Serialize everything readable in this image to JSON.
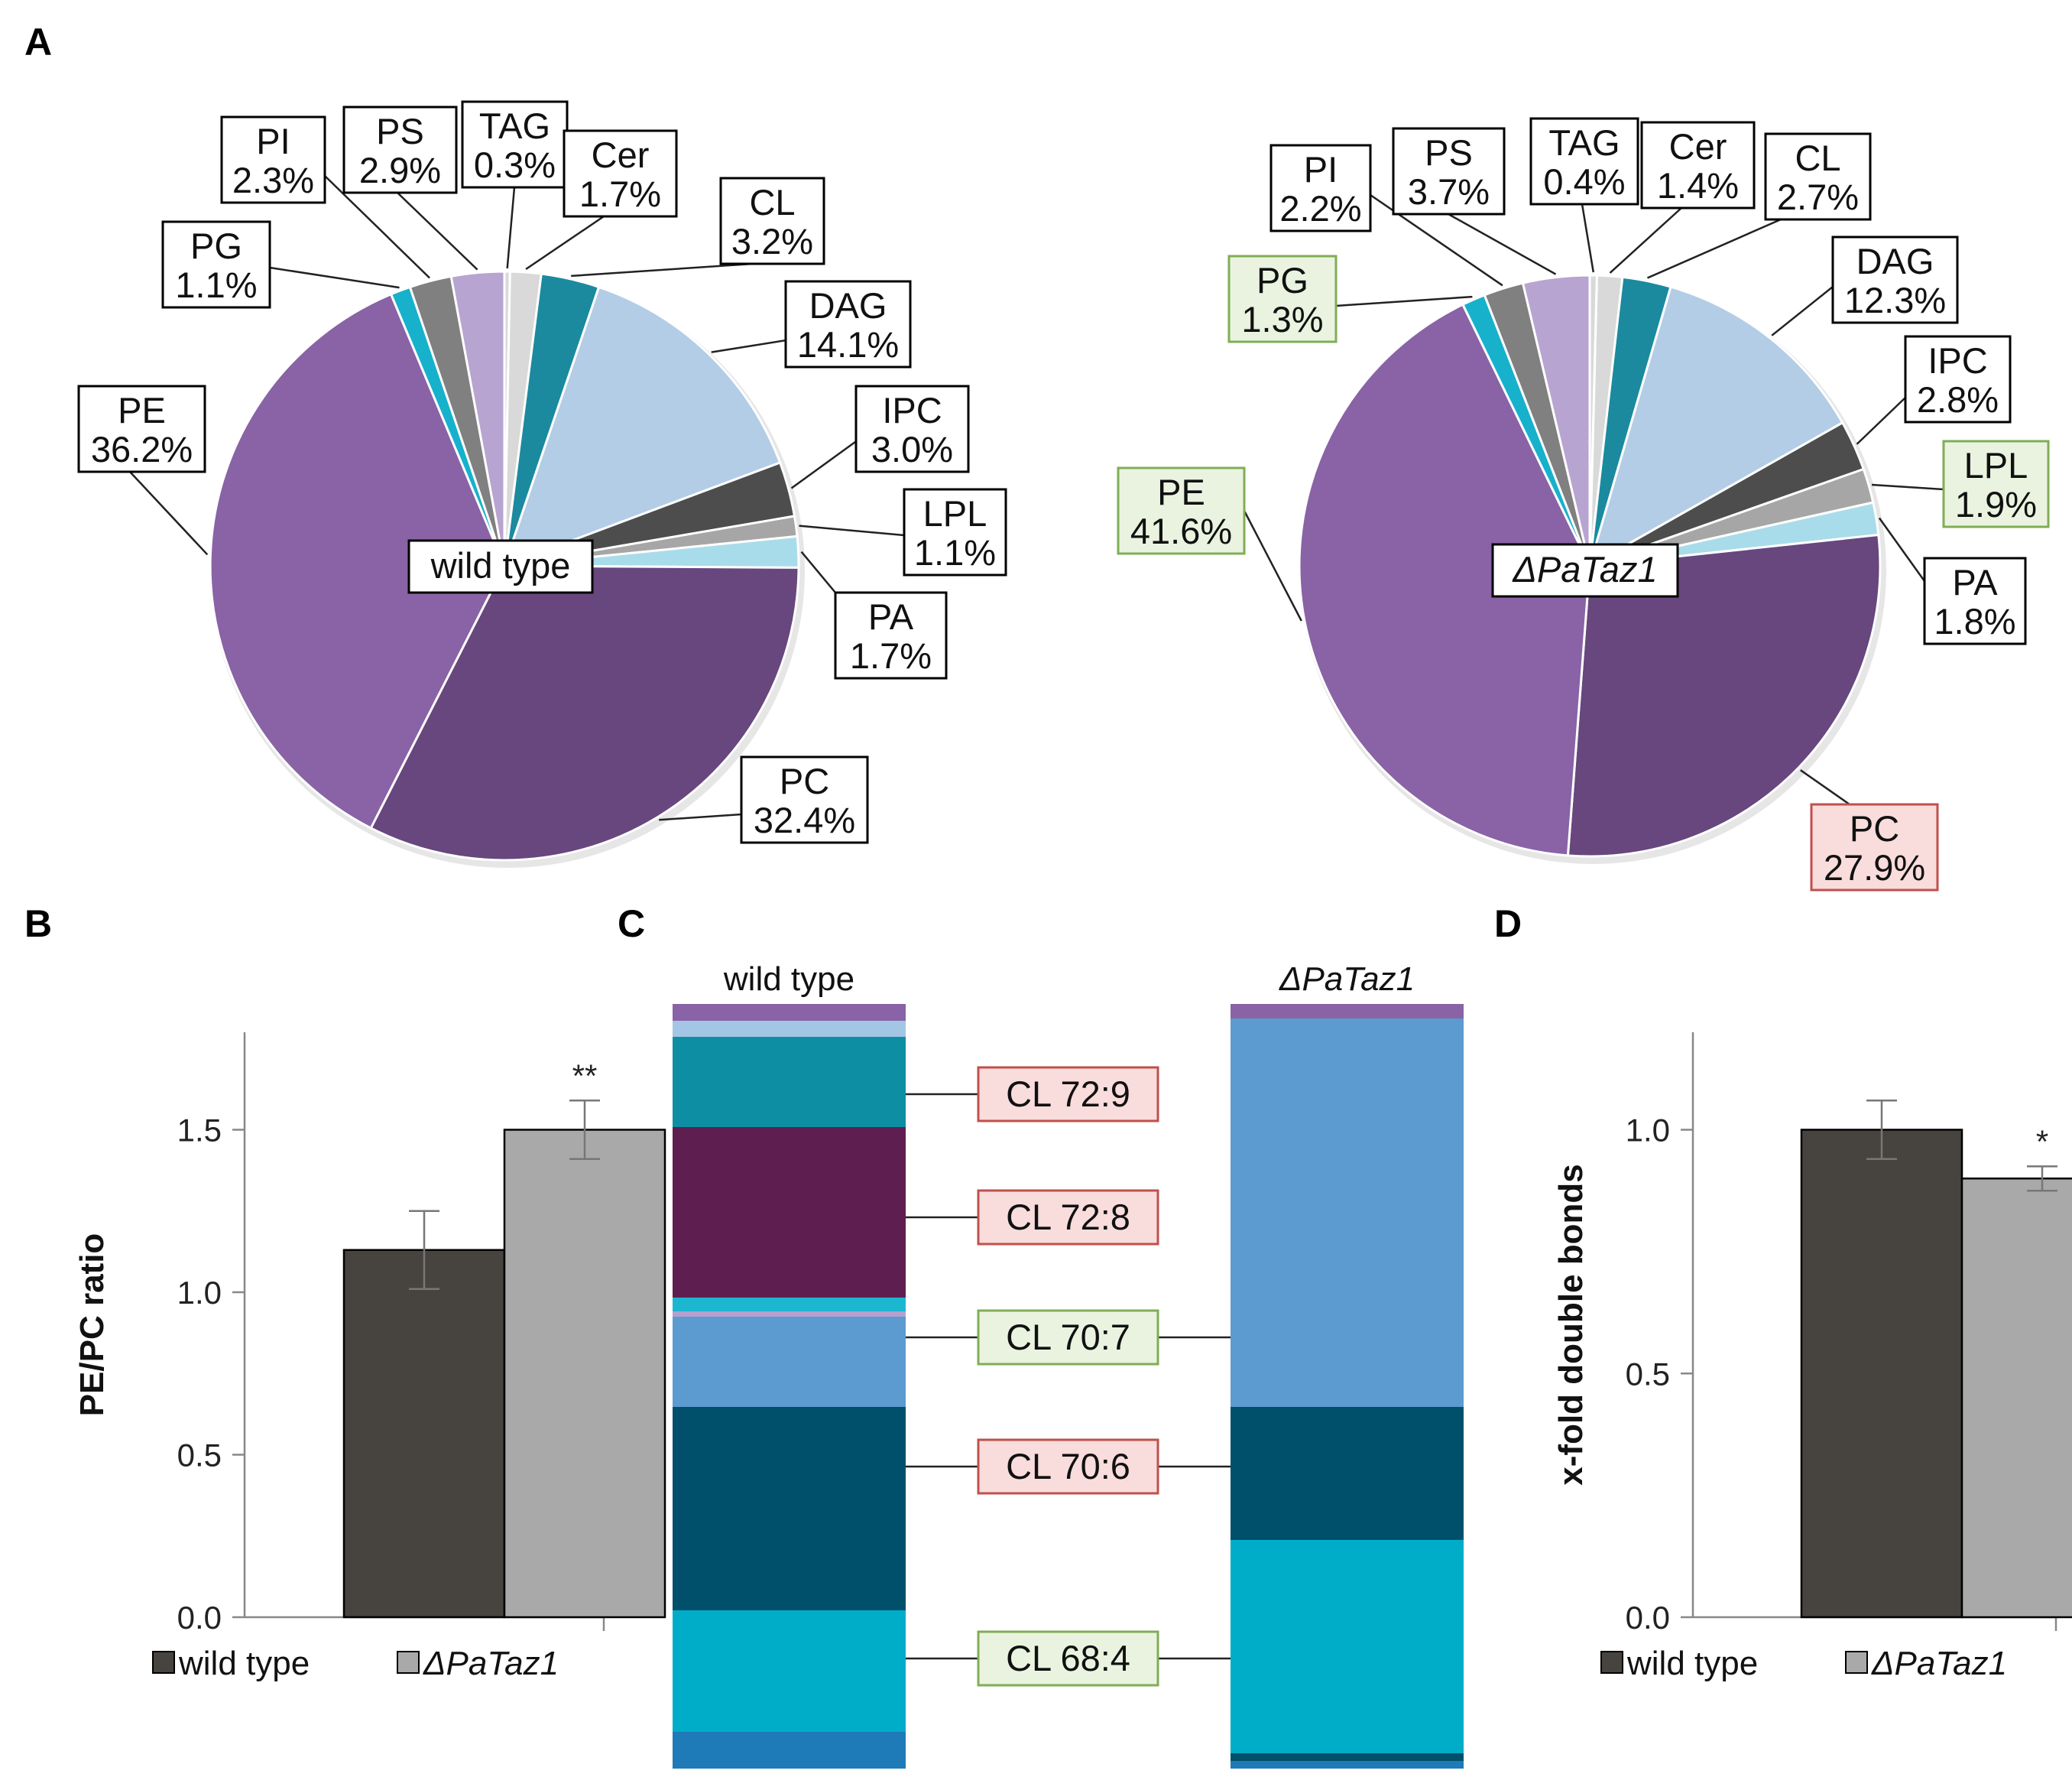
{
  "panels": {
    "a": "A",
    "b": "B",
    "c": "C",
    "d": "D"
  },
  "chart_data": [
    {
      "type": "pie",
      "id": "pie_wt",
      "center_label": "wild type",
      "slices": [
        {
          "name": "TAG",
          "value": 0.3,
          "label": "0.3%",
          "color": "#d9d9d9",
          "highlight": "none"
        },
        {
          "name": "Cer",
          "value": 1.7,
          "label": "1.7%",
          "color": "#d9d9d9",
          "highlight": "none"
        },
        {
          "name": "CL",
          "value": 3.2,
          "label": "3.2%",
          "color": "#1b8a9e",
          "highlight": "none"
        },
        {
          "name": "DAG",
          "value": 14.1,
          "label": "14.1%",
          "color": "#b4cde6",
          "highlight": "none"
        },
        {
          "name": "IPC",
          "value": 3.0,
          "label": "3.0%",
          "color": "#4d4d4d",
          "highlight": "none"
        },
        {
          "name": "LPL",
          "value": 1.1,
          "label": "1.1%",
          "color": "#a6a6a6",
          "highlight": "none"
        },
        {
          "name": "PA",
          "value": 1.7,
          "label": "1.7%",
          "color": "#a9dcea",
          "highlight": "none"
        },
        {
          "name": "PC",
          "value": 32.4,
          "label": "32.4%",
          "color": "#67477e",
          "highlight": "none"
        },
        {
          "name": "PE",
          "value": 36.2,
          "label": "36.2%",
          "color": "#8963a5",
          "highlight": "none"
        },
        {
          "name": "PG",
          "value": 1.1,
          "label": "1.1%",
          "color": "#17b1cc",
          "highlight": "none"
        },
        {
          "name": "PI",
          "value": 2.3,
          "label": "2.3%",
          "color": "#808080",
          "highlight": "none"
        },
        {
          "name": "PS",
          "value": 2.9,
          "label": "2.9%",
          "color": "#b8a4d0",
          "highlight": "none"
        }
      ]
    },
    {
      "type": "pie",
      "id": "pie_mut",
      "center_label": "ΔPaTaz1",
      "slices": [
        {
          "name": "TAG",
          "value": 0.4,
          "label": "0.4%",
          "color": "#d9d9d9",
          "highlight": "none"
        },
        {
          "name": "Cer",
          "value": 1.4,
          "label": "1.4%",
          "color": "#d9d9d9",
          "highlight": "none"
        },
        {
          "name": "CL",
          "value": 2.7,
          "label": "2.7%",
          "color": "#1b8a9e",
          "highlight": "none"
        },
        {
          "name": "DAG",
          "value": 12.3,
          "label": "12.3%",
          "color": "#b4cde6",
          "highlight": "none"
        },
        {
          "name": "IPC",
          "value": 2.8,
          "label": "2.8%",
          "color": "#4d4d4d",
          "highlight": "none"
        },
        {
          "name": "LPL",
          "value": 1.9,
          "label": "1.9%",
          "color": "#a6a6a6",
          "highlight": "up"
        },
        {
          "name": "PA",
          "value": 1.8,
          "label": "1.8%",
          "color": "#a9dcea",
          "highlight": "none"
        },
        {
          "name": "PC",
          "value": 27.9,
          "label": "27.9%",
          "color": "#67477e",
          "highlight": "down"
        },
        {
          "name": "PE",
          "value": 41.6,
          "label": "41.6%",
          "color": "#8963a5",
          "highlight": "up"
        },
        {
          "name": "PG",
          "value": 1.3,
          "label": "1.3%",
          "color": "#17b1cc",
          "highlight": "up"
        },
        {
          "name": "PI",
          "value": 2.2,
          "label": "2.2%",
          "color": "#808080",
          "highlight": "none"
        },
        {
          "name": "PS",
          "value": 3.7,
          "label": "3.7%",
          "color": "#b8a4d0",
          "highlight": "none"
        }
      ]
    },
    {
      "type": "bar",
      "id": "bar_pepc",
      "ylabel": "PE/PC ratio",
      "ylim": [
        0,
        1.8
      ],
      "yticks": [
        0.0,
        0.5,
        1.0,
        1.5
      ],
      "ytick_labels": [
        "0.0",
        "0.5",
        "1.0",
        "1.5"
      ],
      "series": [
        {
          "name": "wild type",
          "value": 1.13,
          "error": 0.12,
          "color": "#47443f",
          "star": ""
        },
        {
          "name": "ΔPaTaz1",
          "value": 1.5,
          "error": 0.09,
          "color": "#a9a9a9",
          "star": "**"
        }
      ]
    },
    {
      "type": "stacked_bar",
      "id": "cl_species",
      "columns": [
        "wild type",
        "ΔPaTaz1"
      ],
      "total": 100,
      "wt_segments": [
        {
          "value": 2.2,
          "color": "#8963a5"
        },
        {
          "value": 2.1,
          "color": "#a3c6e4"
        },
        {
          "value": 11.8,
          "color": "#0e8ea3"
        },
        {
          "value": 22.3,
          "color": "#5e1f50"
        },
        {
          "value": 1.8,
          "color": "#1db6d0"
        },
        {
          "value": 0.7,
          "color": "#b4a0cf"
        },
        {
          "value": 11.8,
          "color": "#5c9bcf"
        },
        {
          "value": 26.6,
          "color": "#00506b"
        },
        {
          "value": 15.9,
          "color": "#00adc8"
        },
        {
          "value": 4.8,
          "color": "#1f7ab8"
        }
      ],
      "mut_segments": [
        {
          "value": 1.9,
          "color": "#8963a5"
        },
        {
          "value": 50.8,
          "color": "#5c9bcf"
        },
        {
          "value": 17.4,
          "color": "#00506b"
        },
        {
          "value": 27.9,
          "color": "#00adc8"
        },
        {
          "value": 1.0,
          "color": "#00506b"
        },
        {
          "value": 1.0,
          "color": "#1f7ab8"
        }
      ],
      "labels": [
        {
          "text": "CL 72:9",
          "change": "down",
          "wt_pos": 11.8,
          "mut_pos": null
        },
        {
          "text": "CL 72:8",
          "change": "down",
          "wt_pos": 27.9,
          "mut_pos": null
        },
        {
          "text": "CL 70:7",
          "change": "up",
          "wt_pos": 43.6,
          "mut_pos": 43.6
        },
        {
          "text": "CL 70:6",
          "change": "down",
          "wt_pos": 60.5,
          "mut_pos": 60.5
        },
        {
          "text": "CL 68:4",
          "change": "up",
          "wt_pos": 85.6,
          "mut_pos": 85.6
        }
      ]
    },
    {
      "type": "bar",
      "id": "bar_db",
      "ylabel": "x-fold double bonds",
      "ylim": [
        0,
        1.2
      ],
      "yticks": [
        0.0,
        0.5,
        1.0
      ],
      "ytick_labels": [
        "0.0",
        "0.5",
        "1.0"
      ],
      "series": [
        {
          "name": "wild type",
          "value": 1.0,
          "error": 0.06,
          "color": "#47443f",
          "star": ""
        },
        {
          "name": "ΔPaTaz1",
          "value": 0.9,
          "error": 0.025,
          "color": "#a9a9a9",
          "star": "*"
        }
      ]
    }
  ]
}
